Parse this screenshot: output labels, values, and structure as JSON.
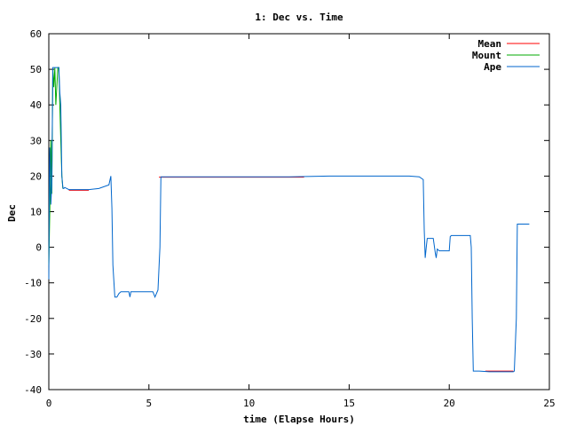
{
  "chart_data": {
    "type": "line",
    "title": "1: Dec vs. Time",
    "xlabel": "time (Elapse Hours)",
    "ylabel": "Dec",
    "xlim": [
      0,
      25
    ],
    "ylim": [
      -40,
      60
    ],
    "xticks": [
      0,
      5,
      10,
      15,
      20,
      25
    ],
    "yticks": [
      -40,
      -30,
      -20,
      -10,
      0,
      10,
      20,
      30,
      40,
      50,
      60
    ],
    "grid": false,
    "legend_position": "top-right",
    "series": [
      {
        "name": "Mean",
        "color": "#ff0000",
        "x": [
          1.0,
          2.0,
          5.5,
          12.75,
          21.8,
          23.2
        ],
        "y": [
          16.0,
          16.0,
          19.7,
          19.7,
          -34.8,
          -34.8
        ],
        "segments": [
          [
            0,
            1
          ],
          [
            2,
            3
          ],
          [
            4,
            5
          ]
        ]
      },
      {
        "name": "Mount",
        "color": "#00aa00",
        "x": [
          0.0,
          0.05,
          0.1,
          0.15,
          0.2,
          0.25,
          0.3,
          0.35,
          0.45,
          0.5,
          0.55,
          0.6,
          0.65,
          0.7
        ],
        "y": [
          -5,
          10,
          30,
          15,
          50.5,
          45,
          50.5,
          40,
          50.5,
          50.5,
          40,
          30,
          20,
          16.5
        ],
        "segments": [
          [
            0,
            13
          ]
        ]
      },
      {
        "name": "Ape",
        "color": "#0066cc",
        "x": [
          0.0,
          0.02,
          0.05,
          0.08,
          0.1,
          0.15,
          0.2,
          0.25,
          0.3,
          0.35,
          0.45,
          0.5,
          0.55,
          0.6,
          0.65,
          0.7,
          0.72,
          0.75,
          0.8,
          0.9,
          1.0,
          1.5,
          2.0,
          2.5,
          3.0,
          3.1,
          3.15,
          3.2,
          3.3,
          3.4,
          3.5,
          3.6,
          4.0,
          4.05,
          4.1,
          4.2,
          4.5,
          5.0,
          5.2,
          5.3,
          5.45,
          5.55,
          5.6,
          6.0,
          8.0,
          10.0,
          12.0,
          14.0,
          16.0,
          18.0,
          18.5,
          18.7,
          18.75,
          18.8,
          18.85,
          18.9,
          19.0,
          19.2,
          19.3,
          19.35,
          19.4,
          19.5,
          19.6,
          20.0,
          20.05,
          20.1,
          20.5,
          21.0,
          21.05,
          21.1,
          21.15,
          21.2,
          21.25,
          21.3,
          21.5,
          22.0,
          22.5,
          23.0,
          23.15,
          23.2,
          23.25,
          23.35,
          23.4,
          23.8,
          24.0
        ],
        "y": [
          -9,
          15,
          28,
          22,
          12,
          18,
          50.5,
          50.5,
          50.5,
          50.5,
          50.5,
          50.5,
          43.5,
          40,
          20,
          17,
          16.5,
          16.5,
          16.8,
          16.5,
          16.2,
          16.2,
          16.2,
          16.5,
          17.5,
          20.0,
          11,
          -5,
          -14,
          -14,
          -13,
          -12.5,
          -12.5,
          -14,
          -12.5,
          -12.5,
          -12.5,
          -12.5,
          -12.5,
          -14,
          -12.0,
          0,
          19.8,
          19.8,
          19.8,
          19.8,
          19.8,
          20.0,
          20.0,
          20.0,
          19.8,
          19.0,
          5,
          -3,
          0,
          2.5,
          2.5,
          2.5,
          -1.5,
          -3,
          -0.5,
          -1,
          -1,
          -1,
          3,
          3.3,
          3.3,
          3.3,
          3.3,
          0,
          -20,
          -34.8,
          -34.8,
          -34.8,
          -34.8,
          -35,
          -35,
          -35,
          -35,
          -35,
          -34.8,
          -20,
          6.5,
          6.5,
          6.5
        ],
        "segments": [
          [
            0,
            84
          ]
        ]
      }
    ]
  }
}
